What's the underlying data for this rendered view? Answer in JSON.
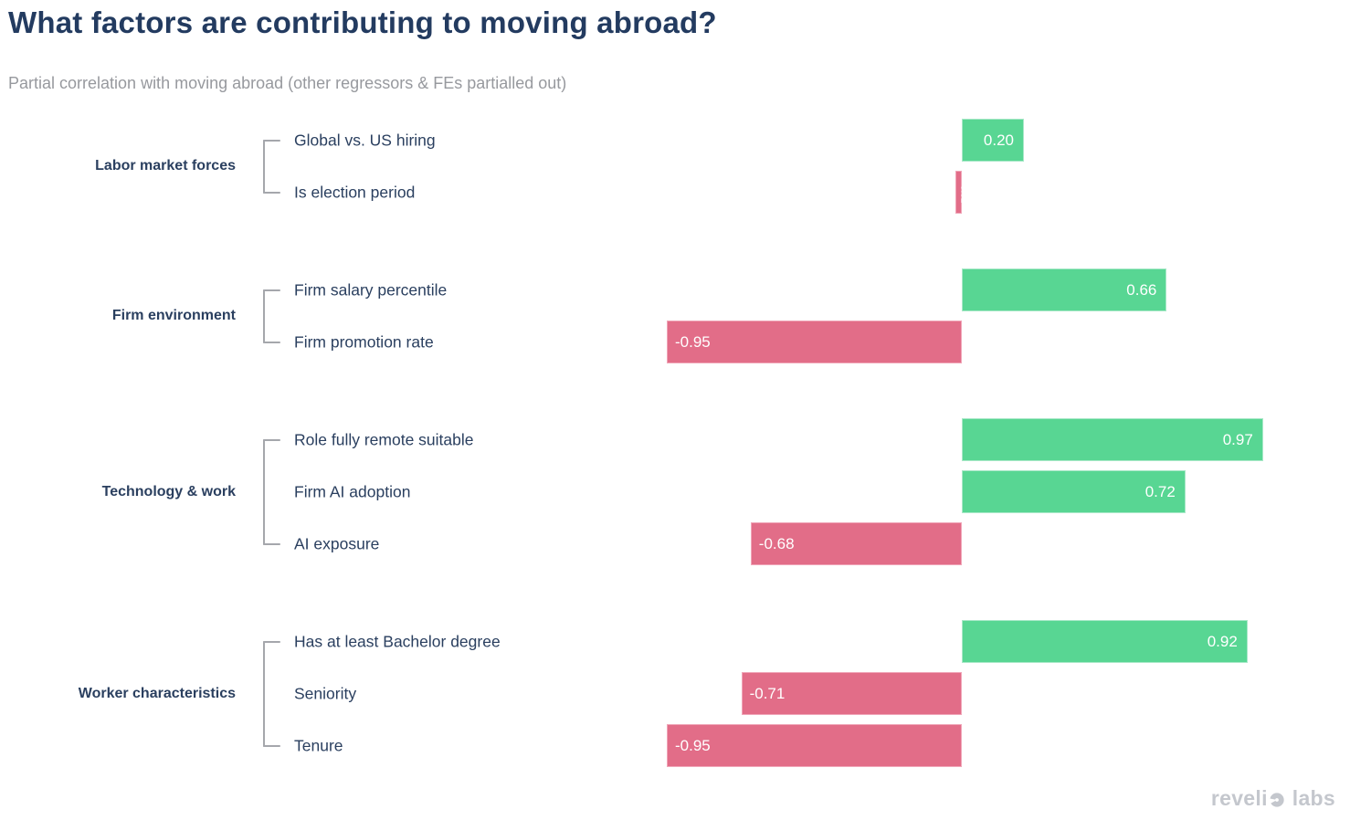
{
  "title": "What factors are contributing to moving abroad?",
  "subtitle": "Partial correlation with moving abroad (other regressors & FEs partialled out)",
  "footer": {
    "brand_prefix": "reveli",
    "brand_suffix": "labs"
  },
  "colors": {
    "positive": "#58d693",
    "negative": "#e26d88",
    "title_text": "#233b60",
    "label_text": "#2a3f5f",
    "muted_text": "#97999e",
    "bracket": "#a5a7ac",
    "logo": "#c4c7cd"
  },
  "chart_data": {
    "type": "bar",
    "orientation": "horizontal",
    "title": "What factors are contributing to moving abroad?",
    "xlabel": "Partial correlation with moving abroad",
    "xlim": [
      -1.05,
      1.05
    ],
    "grid": false,
    "legend": false,
    "groups": [
      {
        "label": "Labor market forces",
        "items": [
          {
            "label": "Global vs. US hiring",
            "value": 0.2,
            "display": "0.20"
          },
          {
            "label": "Is election period",
            "value": -0.02,
            "display": "-0.02"
          }
        ]
      },
      {
        "label": "Firm environment",
        "items": [
          {
            "label": "Firm salary percentile",
            "value": 0.66,
            "display": "0.66"
          },
          {
            "label": "Firm promotion rate",
            "value": -0.95,
            "display": "-0.95"
          }
        ]
      },
      {
        "label": "Technology & work",
        "items": [
          {
            "label": "Role fully remote suitable",
            "value": 0.97,
            "display": "0.97"
          },
          {
            "label": "Firm AI adoption",
            "value": 0.72,
            "display": "0.72"
          },
          {
            "label": "AI exposure",
            "value": -0.68,
            "display": "-0.68"
          }
        ]
      },
      {
        "label": "Worker characteristics",
        "items": [
          {
            "label": "Has at least Bachelor degree",
            "value": 0.92,
            "display": "0.92"
          },
          {
            "label": "Seniority",
            "value": -0.71,
            "display": "-0.71"
          },
          {
            "label": "Tenure",
            "value": -0.95,
            "display": "-0.95"
          }
        ]
      }
    ]
  }
}
